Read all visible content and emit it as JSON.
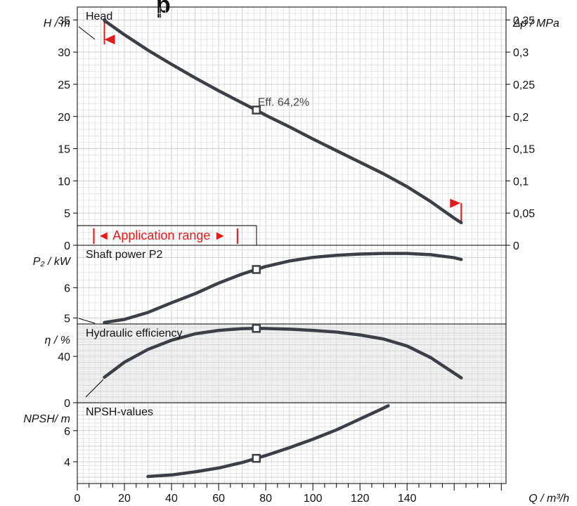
{
  "title_fragment": "p",
  "colors": {
    "curve": "#3b3f47",
    "grid": "#cfcfcf",
    "range": "#e41a1a"
  },
  "chart_data": [
    {
      "type": "line",
      "title": "Head",
      "ylabel": "H / m",
      "y2label": "Δp / MPa",
      "ylim": [
        0,
        37
      ],
      "yticks": [
        0,
        5,
        10,
        15,
        20,
        25,
        30,
        35
      ],
      "y2ticks": [
        "0",
        "0,05",
        "0,1",
        "0,15",
        "0,2",
        "0,25",
        "0,3",
        "0,35"
      ],
      "x": [
        11.5,
        20,
        30,
        40,
        50,
        60,
        70,
        76,
        80,
        90,
        100,
        110,
        120,
        130,
        140,
        150,
        160,
        163
      ],
      "y": [
        34.9,
        32.7,
        30.3,
        28.1,
        26.0,
        24.0,
        22.1,
        21.0,
        20.2,
        18.4,
        16.5,
        14.7,
        12.9,
        11.1,
        9.1,
        6.8,
        4.2,
        3.5
      ],
      "operating_point": {
        "x": 76,
        "y": 21.0
      },
      "annotation": "Eff.  64,2%",
      "application_range_label": "◄ Application range ►",
      "application_range": [
        11.5,
        163
      ]
    },
    {
      "type": "line",
      "title": "Shaft power P2",
      "ylabel": "P₂ / kW",
      "ylim": [
        4.8,
        7.4
      ],
      "yticks": [
        5,
        6
      ],
      "x": [
        11.5,
        20,
        30,
        40,
        50,
        60,
        70,
        76,
        80,
        90,
        100,
        110,
        120,
        130,
        140,
        150,
        160,
        163
      ],
      "y": [
        4.85,
        4.95,
        5.18,
        5.5,
        5.8,
        6.15,
        6.45,
        6.6,
        6.7,
        6.88,
        7.0,
        7.07,
        7.11,
        7.13,
        7.13,
        7.09,
        6.99,
        6.93
      ],
      "operating_point": {
        "x": 76,
        "y": 6.6
      }
    },
    {
      "type": "line",
      "title": "Hydraulic efficiency",
      "ylabel": "η / %",
      "ylim": [
        0,
        68
      ],
      "yticks": [
        0,
        40
      ],
      "x": [
        11.5,
        20,
        30,
        40,
        50,
        60,
        70,
        76,
        80,
        90,
        100,
        110,
        120,
        130,
        140,
        150,
        160,
        163
      ],
      "y": [
        22,
        35,
        46,
        54,
        59.5,
        62.5,
        64,
        64.2,
        64.1,
        63.5,
        62.5,
        61,
        58.5,
        55,
        49,
        39,
        25.5,
        21.5
      ],
      "operating_point": {
        "x": 76,
        "y": 64.2
      }
    },
    {
      "type": "line",
      "title": "NPSH-values",
      "ylabel": "NPSH/ m",
      "ylim": [
        2.6,
        7.8
      ],
      "yticks": [
        4,
        6
      ],
      "x": [
        30,
        40,
        50,
        60,
        70,
        76,
        80,
        90,
        100,
        110,
        120,
        130,
        132
      ],
      "y": [
        3.05,
        3.15,
        3.35,
        3.6,
        3.95,
        4.22,
        4.4,
        4.9,
        5.45,
        6.05,
        6.75,
        7.45,
        7.6
      ],
      "operating_point": {
        "x": 76,
        "y": 4.22
      }
    }
  ],
  "x_axis": {
    "label": "Q / m³/h",
    "xlim": [
      0,
      182
    ],
    "ticks": [
      0,
      20,
      40,
      60,
      80,
      100,
      120,
      140
    ]
  }
}
